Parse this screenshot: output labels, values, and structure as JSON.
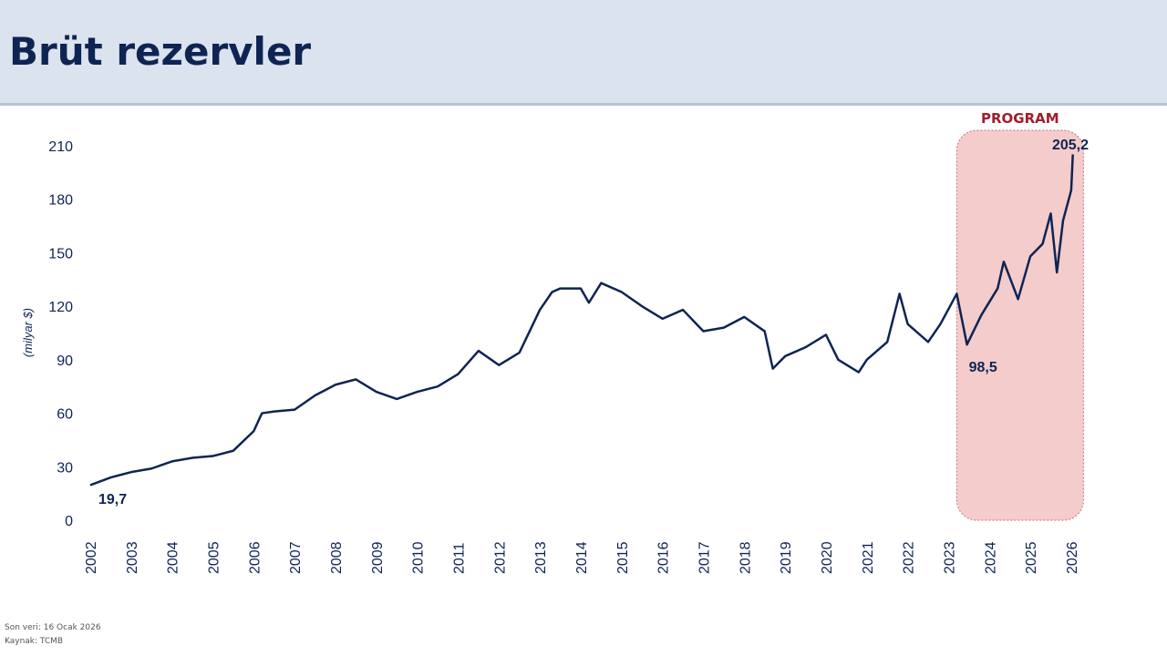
{
  "header": {
    "title": "Brüt rezervler"
  },
  "footer": {
    "last_data": "Son veri: 16 Ocak 2026",
    "source": "Kaynak: TCMB"
  },
  "chart_data": {
    "type": "line",
    "title": "",
    "ylabel": "(milyar $)",
    "xlabel": "",
    "ylim": [
      0,
      210
    ],
    "yticks": [
      "0",
      "30",
      "60",
      "90",
      "120",
      "150",
      "180",
      "210"
    ],
    "xticks": [
      "2002",
      "2003",
      "2004",
      "2005",
      "2006",
      "2007",
      "2008",
      "2009",
      "2010",
      "2011",
      "2012",
      "2013",
      "2014",
      "2015",
      "2016",
      "2017",
      "2018",
      "2019",
      "2020",
      "2021",
      "2022",
      "2023",
      "2024",
      "2025",
      "2026"
    ],
    "grid": false,
    "line_color": "#0f2453",
    "series": [
      {
        "x": [
          2002.0,
          2002.5,
          2003.0,
          2003.5,
          2004.0,
          2004.5,
          2005.0,
          2005.5,
          2006.0,
          2006.2,
          2006.5,
          2007.0,
          2007.5,
          2008.0,
          2008.5,
          2009.0,
          2009.5,
          2010.0,
          2010.5,
          2011.0,
          2011.5,
          2012.0,
          2012.5,
          2013.0,
          2013.3,
          2013.5,
          2014.0,
          2014.2,
          2014.5,
          2015.0,
          2015.5,
          2016.0,
          2016.5,
          2017.0,
          2017.5,
          2018.0,
          2018.5,
          2018.7,
          2019.0,
          2019.5,
          2020.0,
          2020.3,
          2020.8,
          2021.0,
          2021.5,
          2021.8,
          2022.0,
          2022.5,
          2022.8,
          2023.2,
          2023.45,
          2023.8,
          2024.2,
          2024.35,
          2024.7,
          2025.0,
          2025.3,
          2025.5,
          2025.65,
          2025.8,
          2026.0,
          2026.04
        ],
        "values": [
          19.7,
          24,
          27,
          29,
          33,
          35,
          36,
          39,
          50,
          60,
          61,
          62,
          70,
          76,
          79,
          72,
          68,
          72,
          75,
          82,
          95,
          87,
          94,
          118,
          128,
          130,
          130,
          122,
          133,
          128,
          120,
          113,
          118,
          106,
          108,
          114,
          106,
          85,
          92,
          97,
          104,
          90,
          83,
          90,
          100,
          127,
          110,
          100,
          110,
          127,
          98.5,
          115,
          130,
          145,
          124,
          148,
          155,
          172,
          139,
          168,
          185,
          205.2
        ]
      }
    ],
    "annotations": {
      "start": "19,7",
      "min": "98,5",
      "last": "205,2",
      "program": "PROGRAM"
    },
    "program_range": [
      2023.2,
      2026.3
    ],
    "program_color": "#f4cccc"
  }
}
